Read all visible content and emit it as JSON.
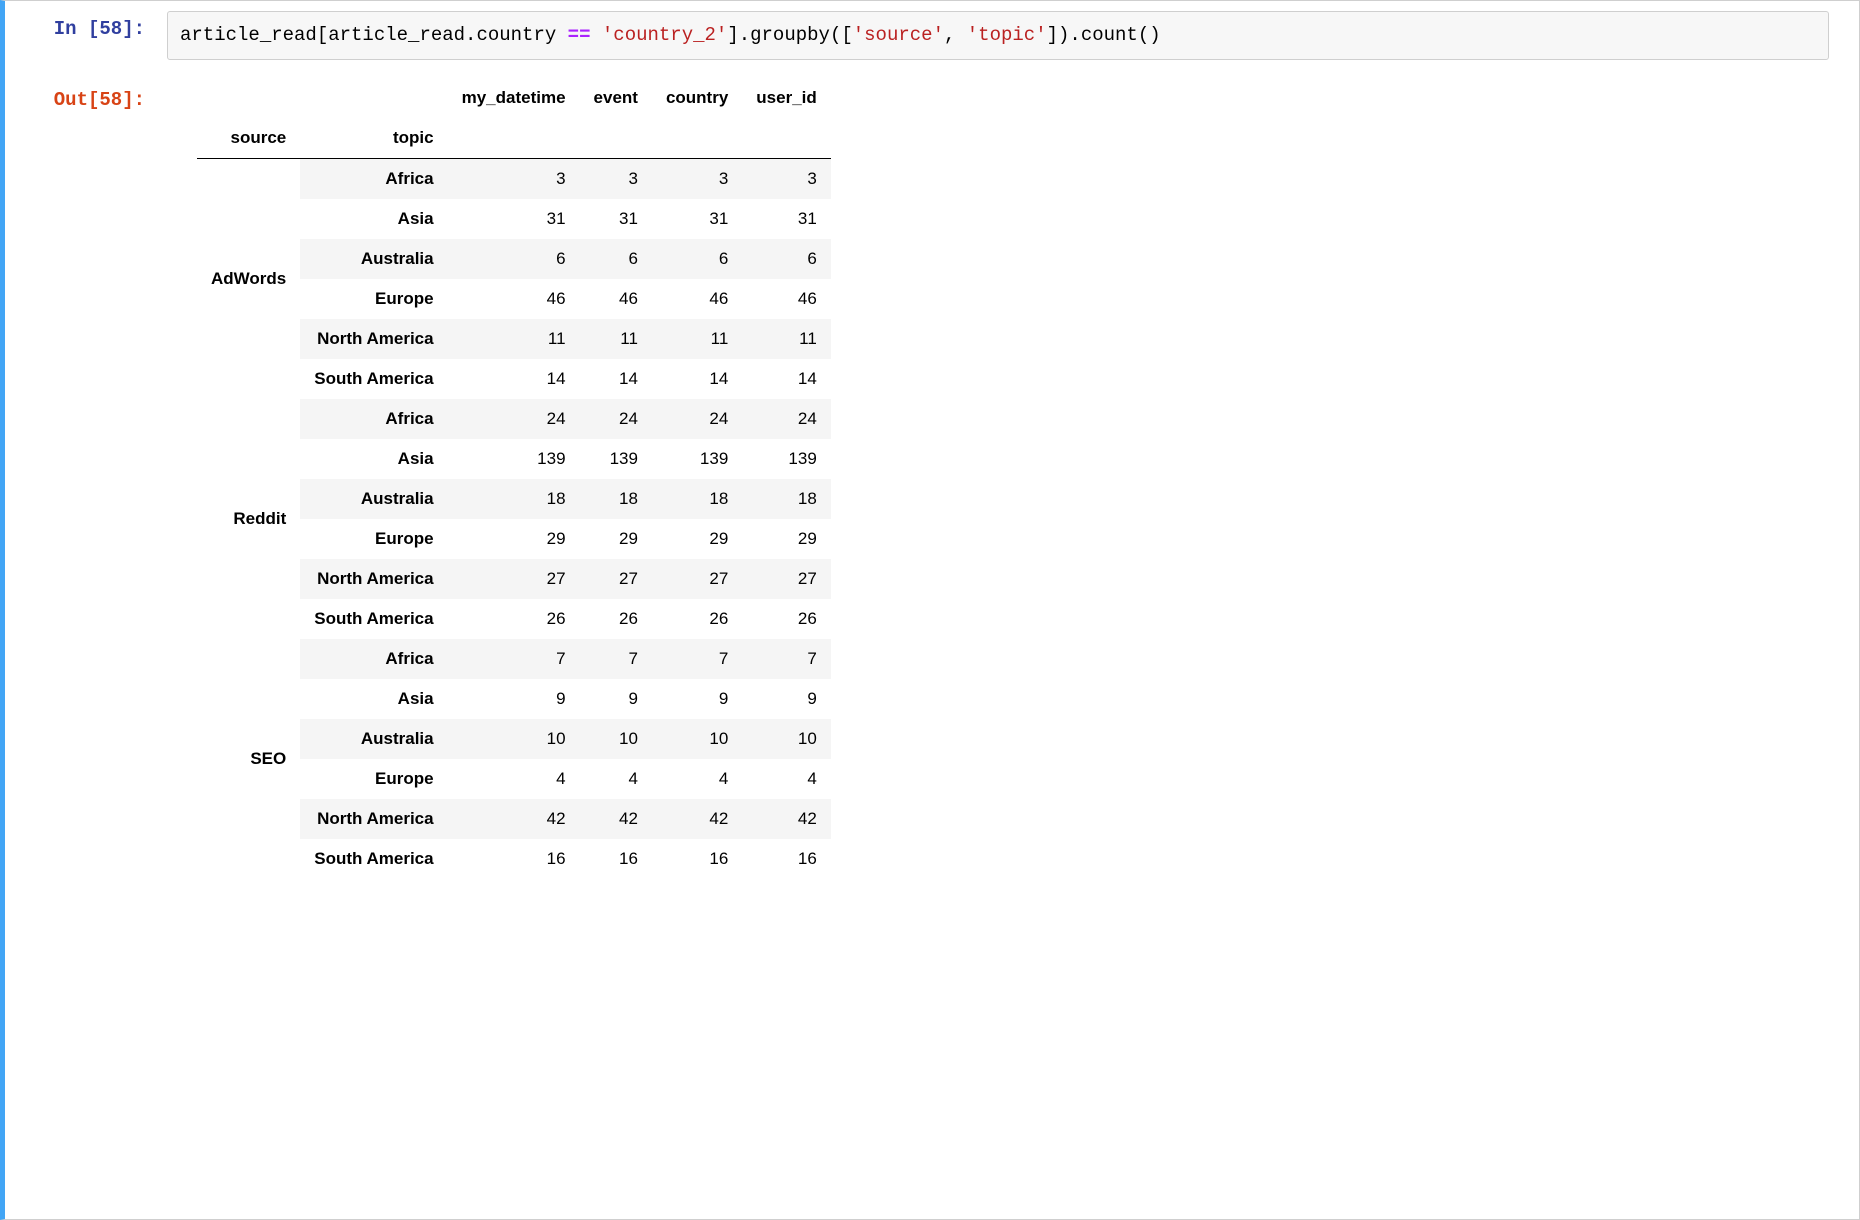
{
  "prompt": {
    "in_label": "In [58]:",
    "out_label": "Out[58]:"
  },
  "code": {
    "tokens": [
      {
        "t": "article_read[article_read",
        "cls": "kw-var"
      },
      {
        "t": ".",
        "cls": "kw-punct"
      },
      {
        "t": "country ",
        "cls": "kw-var"
      },
      {
        "t": "==",
        "cls": "kw-op"
      },
      {
        "t": " ",
        "cls": "kw-var"
      },
      {
        "t": "'country_2'",
        "cls": "kw-str"
      },
      {
        "t": "]",
        "cls": "kw-punct"
      },
      {
        "t": ".",
        "cls": "kw-punct"
      },
      {
        "t": "groupby([",
        "cls": "kw-var"
      },
      {
        "t": "'source'",
        "cls": "kw-str"
      },
      {
        "t": ", ",
        "cls": "kw-punct"
      },
      {
        "t": "'topic'",
        "cls": "kw-str"
      },
      {
        "t": "])",
        "cls": "kw-punct"
      },
      {
        "t": ".",
        "cls": "kw-punct"
      },
      {
        "t": "count()",
        "cls": "kw-var"
      }
    ]
  },
  "table": {
    "type": "table",
    "index_names": [
      "source",
      "topic"
    ],
    "columns": [
      "my_datetime",
      "event",
      "country",
      "user_id"
    ],
    "header_bg": "#ffffff",
    "stripe_bg": "#f5f5f5",
    "border_color": "#000000",
    "font_size_pt": 13,
    "font_weight_header": "bold",
    "col_align": "right",
    "groups": [
      {
        "source": "AdWords",
        "rows": [
          {
            "topic": "Africa",
            "values": [
              3,
              3,
              3,
              3
            ]
          },
          {
            "topic": "Asia",
            "values": [
              31,
              31,
              31,
              31
            ]
          },
          {
            "topic": "Australia",
            "values": [
              6,
              6,
              6,
              6
            ]
          },
          {
            "topic": "Europe",
            "values": [
              46,
              46,
              46,
              46
            ]
          },
          {
            "topic": "North America",
            "values": [
              11,
              11,
              11,
              11
            ]
          },
          {
            "topic": "South America",
            "values": [
              14,
              14,
              14,
              14
            ]
          }
        ]
      },
      {
        "source": "Reddit",
        "rows": [
          {
            "topic": "Africa",
            "values": [
              24,
              24,
              24,
              24
            ]
          },
          {
            "topic": "Asia",
            "values": [
              139,
              139,
              139,
              139
            ]
          },
          {
            "topic": "Australia",
            "values": [
              18,
              18,
              18,
              18
            ]
          },
          {
            "topic": "Europe",
            "values": [
              29,
              29,
              29,
              29
            ]
          },
          {
            "topic": "North America",
            "values": [
              27,
              27,
              27,
              27
            ]
          },
          {
            "topic": "South America",
            "values": [
              26,
              26,
              26,
              26
            ]
          }
        ]
      },
      {
        "source": "SEO",
        "rows": [
          {
            "topic": "Africa",
            "values": [
              7,
              7,
              7,
              7
            ]
          },
          {
            "topic": "Asia",
            "values": [
              9,
              9,
              9,
              9
            ]
          },
          {
            "topic": "Australia",
            "values": [
              10,
              10,
              10,
              10
            ]
          },
          {
            "topic": "Europe",
            "values": [
              4,
              4,
              4,
              4
            ]
          },
          {
            "topic": "North America",
            "values": [
              42,
              42,
              42,
              42
            ]
          },
          {
            "topic": "South America",
            "values": [
              16,
              16,
              16,
              16
            ]
          }
        ]
      }
    ]
  },
  "colors": {
    "cell_border": "#cfcfcf",
    "cell_accent": "#42a5f5",
    "code_bg": "#f7f7f7",
    "in_prompt": "#303f9f",
    "out_prompt": "#d84315",
    "string": "#ba2121",
    "operator": "#aa22ff"
  }
}
